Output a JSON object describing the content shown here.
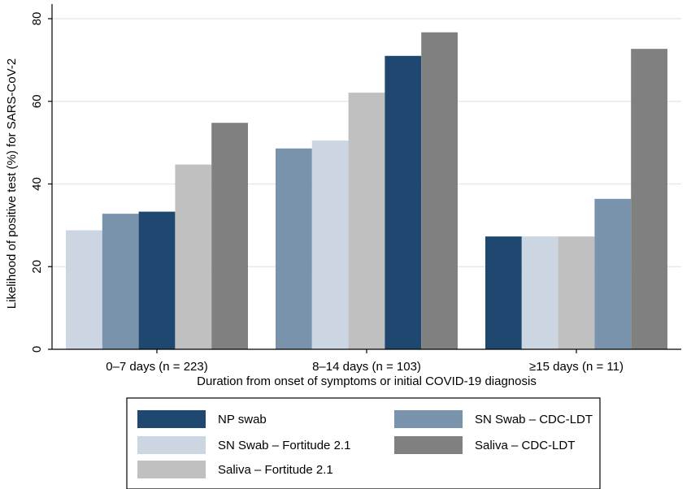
{
  "chart_data": {
    "type": "bar",
    "categories": [
      "0–7 days (n = 223)",
      "8–14 days (n = 103)",
      "≥15 days (n = 11)"
    ],
    "xlabel": "Duration from onset of symptoms or initial COVID-19 diagnosis",
    "ylabel": "Likelihood of positive test (%) for SARS-CoV-2",
    "ylim": [
      0,
      80
    ],
    "yticks": [
      0,
      20,
      40,
      60,
      80
    ],
    "grid": true,
    "legend_position": "bottom",
    "series": [
      {
        "name": "NP swab",
        "color": "#1f4870"
      },
      {
        "name": "SN Swab – CDC-LDT",
        "color": "#7a93ad"
      },
      {
        "name": "SN Swab – Fortitude 2.1",
        "color": "#cbd6e2"
      },
      {
        "name": "Saliva – CDC-LDT",
        "color": "#808080"
      },
      {
        "name": "Saliva – Fortitude 2.1",
        "color": "#c0c0c0"
      }
    ],
    "groups": [
      {
        "bars": [
          {
            "series": "SN Swab – Fortitude 2.1",
            "value": 28.8
          },
          {
            "series": "SN Swab – CDC-LDT",
            "value": 32.8
          },
          {
            "series": "NP swab",
            "value": 33.3
          },
          {
            "series": "Saliva – Fortitude 2.1",
            "value": 44.7
          },
          {
            "series": "Saliva – CDC-LDT",
            "value": 54.8
          }
        ]
      },
      {
        "bars": [
          {
            "series": "SN Swab – CDC-LDT",
            "value": 48.6
          },
          {
            "series": "SN Swab – Fortitude 2.1",
            "value": 50.5
          },
          {
            "series": "Saliva – Fortitude 2.1",
            "value": 62.1
          },
          {
            "series": "NP swab",
            "value": 71.0
          },
          {
            "series": "Saliva – CDC-LDT",
            "value": 76.7
          }
        ]
      },
      {
        "bars": [
          {
            "series": "NP swab",
            "value": 27.3
          },
          {
            "series": "SN Swab – Fortitude 2.1",
            "value": 27.3
          },
          {
            "series": "Saliva – Fortitude 2.1",
            "value": 27.3
          },
          {
            "series": "SN Swab – CDC-LDT",
            "value": 36.4
          },
          {
            "series": "Saliva – CDC-LDT",
            "value": 72.7
          }
        ]
      }
    ]
  }
}
